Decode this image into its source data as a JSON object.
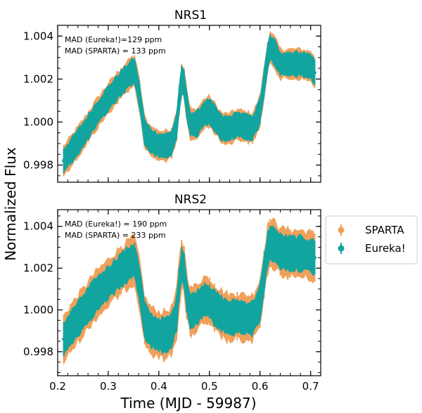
{
  "chart_data": {
    "type": "scatter",
    "xlabel": "Time (MJD - 59987)",
    "ylabel": "Normalized Flux",
    "xlim": [
      0.2,
      0.72
    ],
    "x_ticks": [
      "0.2",
      "0.3",
      "0.4",
      "0.5",
      "0.6",
      "0.7"
    ],
    "x_tick_values": [
      0.2,
      0.3,
      0.4,
      0.5,
      0.6,
      0.7
    ],
    "legend": {
      "location": "right",
      "entries": [
        {
          "name": "SPARTA",
          "color": "#f0a05a"
        },
        {
          "name": "Eureka!",
          "color": "#12a5a0"
        }
      ]
    },
    "panels": [
      {
        "title": "NRS1",
        "ylim": [
          0.9972,
          1.0045
        ],
        "y_ticks": [
          "0.998",
          "1.000",
          "1.002",
          "1.004"
        ],
        "y_tick_values": [
          0.998,
          1.0,
          1.002,
          1.004
        ],
        "annotations": [
          "MAD (Eureka!)=129 ppm",
          "MAD (SPARTA) = 133 ppm"
        ],
        "series": [
          {
            "name": "SPARTA",
            "half_width": 0.00068
          },
          {
            "name": "Eureka!",
            "half_width": 0.00055
          }
        ],
        "x": [
          0.212,
          0.225,
          0.25,
          0.275,
          0.3,
          0.325,
          0.345,
          0.352,
          0.362,
          0.372,
          0.385,
          0.4,
          0.415,
          0.425,
          0.435,
          0.44,
          0.445,
          0.45,
          0.455,
          0.462,
          0.475,
          0.49,
          0.5,
          0.51,
          0.525,
          0.54,
          0.555,
          0.57,
          0.585,
          0.6,
          0.608,
          0.615,
          0.62,
          0.63,
          0.64,
          0.66,
          0.68,
          0.7,
          0.708
        ],
        "y": [
          0.9982,
          0.9986,
          0.9994,
          1.0003,
          1.0011,
          1.0018,
          1.0023,
          1.0024,
          1.0012,
          0.9995,
          0.9991,
          0.9989,
          0.9989,
          0.999,
          0.9998,
          1.001,
          1.002,
          1.0018,
          1.0008,
          0.9999,
          0.9999,
          1.0004,
          1.0005,
          1.0002,
          0.9997,
          0.9997,
          0.9999,
          0.9998,
          0.9997,
          1.0005,
          1.0018,
          1.003,
          1.0035,
          1.0032,
          1.0027,
          1.0027,
          1.0027,
          1.0026,
          1.0023
        ]
      },
      {
        "title": "NRS2",
        "ylim": [
          0.99685,
          1.0048
        ],
        "y_ticks": [
          "0.998",
          "1.000",
          "1.002",
          "1.004"
        ],
        "y_tick_values": [
          0.998,
          1.0,
          1.002,
          1.004
        ],
        "annotations": [
          "MAD (Eureka!) = 190 ppm",
          "MAD (SPARTA) = 233 ppm"
        ],
        "series": [
          {
            "name": "SPARTA",
            "half_width": 0.0011
          },
          {
            "name": "Eureka!",
            "half_width": 0.00078
          }
        ],
        "x": [
          0.212,
          0.225,
          0.25,
          0.275,
          0.3,
          0.325,
          0.345,
          0.352,
          0.362,
          0.372,
          0.385,
          0.4,
          0.415,
          0.425,
          0.435,
          0.44,
          0.445,
          0.45,
          0.455,
          0.462,
          0.475,
          0.49,
          0.5,
          0.51,
          0.525,
          0.54,
          0.555,
          0.57,
          0.585,
          0.6,
          0.608,
          0.615,
          0.62,
          0.63,
          0.64,
          0.66,
          0.68,
          0.7,
          0.708
        ],
        "y": [
          0.9986,
          0.9991,
          0.9999,
          1.0007,
          1.0013,
          1.0019,
          1.0023,
          1.0024,
          1.0012,
          0.9995,
          0.999,
          0.9988,
          0.9988,
          0.999,
          0.9998,
          1.0012,
          1.0022,
          1.0019,
          1.0007,
          0.9999,
          1.0001,
          1.0005,
          1.0004,
          1.0001,
          0.9998,
          0.9996,
          0.9997,
          0.9996,
          0.9996,
          1.0003,
          1.0017,
          1.0029,
          1.0032,
          1.0031,
          1.0028,
          1.0027,
          1.0027,
          1.0026,
          1.0025
        ]
      }
    ]
  }
}
